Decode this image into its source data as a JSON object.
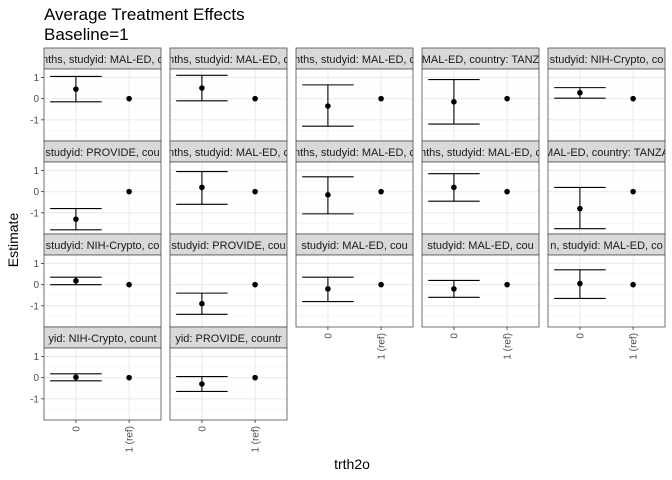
{
  "chart_data": {
    "type": "scatter",
    "subtype": "point-errorbar facet grid",
    "title": "Average Treatment Effects",
    "subtitle": "Baseline=1",
    "xlabel": "trth2o",
    "ylabel": "Estimate",
    "categories": [
      "0",
      "1 (ref)"
    ],
    "ylim": [
      -2,
      1.4
    ],
    "yticks": [
      -1,
      0,
      1
    ],
    "grid": true,
    "theme": "bw",
    "colors": {
      "strip_bg": "#d9d9d9",
      "strip_border": "#4d4d4d",
      "grid_major": "#ebebeb",
      "grid_minor": "#f5f5f5",
      "point": "#000000",
      "panel_border": "#4d4d4d"
    },
    "panels": [
      {
        "strip": "nths, studyid: MAL-ED, c",
        "est": 0.45,
        "lower": -0.15,
        "upper": 1.05
      },
      {
        "strip": "nths, studyid: MAL-ED, c",
        "est": 0.5,
        "lower": -0.1,
        "upper": 1.1
      },
      {
        "strip": "nths, studyid: MAL-ED, c",
        "est": -0.35,
        "lower": -1.3,
        "upper": 0.65
      },
      {
        "strip": "MAL-ED, country: TANZ",
        "est": -0.15,
        "lower": -1.2,
        "upper": 0.9
      },
      {
        "strip": "studyid: NIH-Crypto, co",
        "est": 0.28,
        "lower": 0.02,
        "upper": 0.52
      },
      {
        "strip": "studyid: PROVIDE, cou",
        "est": -1.3,
        "lower": -1.8,
        "upper": -0.8
      },
      {
        "strip": "nths, studyid: MAL-ED, c",
        "est": 0.2,
        "lower": -0.6,
        "upper": 0.95
      },
      {
        "strip": "nths, studyid: MAL-ED, c",
        "est": -0.15,
        "lower": -1.05,
        "upper": 0.7
      },
      {
        "strip": "nths, studyid: MAL-ED, c",
        "est": 0.2,
        "lower": -0.45,
        "upper": 0.85
      },
      {
        "strip": "MAL-ED, country: TANZA",
        "est": -0.8,
        "lower": -1.75,
        "upper": 0.2
      },
      {
        "strip": "studyid: NIH-Crypto, co",
        "est": 0.18,
        "lower": 0.0,
        "upper": 0.35
      },
      {
        "strip": "studyid: PROVIDE, cou",
        "est": -0.9,
        "lower": -1.4,
        "upper": -0.4
      },
      {
        "strip": "studyid: MAL-ED, cou",
        "est": -0.2,
        "lower": -0.8,
        "upper": 0.35
      },
      {
        "strip": "studyid: MAL-ED, cou",
        "est": -0.2,
        "lower": -0.6,
        "upper": 0.2
      },
      {
        "strip": "n, studyid: MAL-ED, co",
        "est": 0.05,
        "lower": -0.65,
        "upper": 0.7
      },
      {
        "strip": "yid: NIH-Crypto, count",
        "est": 0.02,
        "lower": -0.15,
        "upper": 0.18
      },
      {
        "strip": "yid: PROVIDE, countr",
        "est": -0.3,
        "lower": -0.65,
        "upper": 0.05
      }
    ]
  }
}
